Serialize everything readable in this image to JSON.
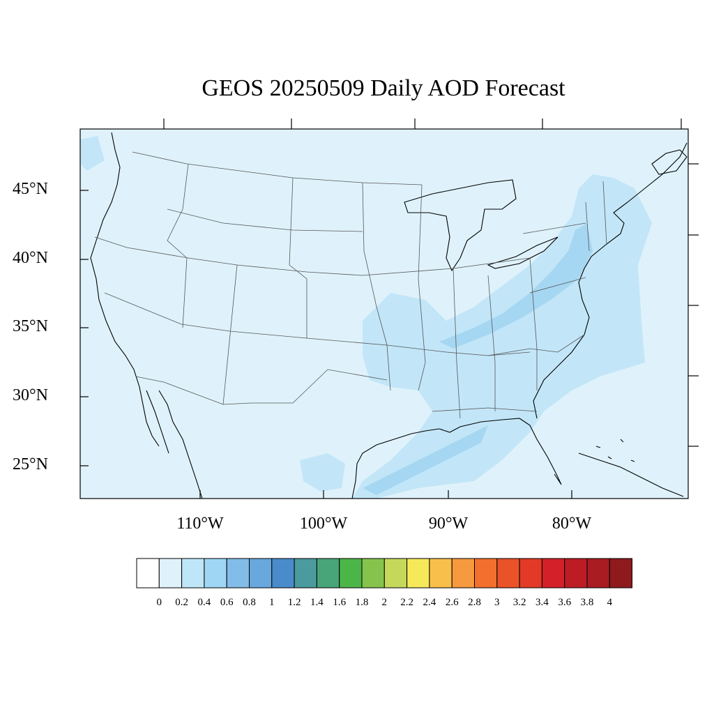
{
  "title": "GEOS 20250509 Daily AOD Forecast",
  "latitude_labels": [
    "45°N",
    "40°N",
    "35°N",
    "30°N",
    "25°N"
  ],
  "longitude_labels": [
    "110°W",
    "100°W",
    "90°W",
    "80°W"
  ],
  "colorbar": {
    "labels": [
      "0",
      "0.2",
      "0.4",
      "0.6",
      "0.8",
      "1",
      "1.2",
      "1.4",
      "1.6",
      "1.8",
      "2",
      "2.2",
      "2.4",
      "2.6",
      "2.8",
      "3",
      "3.2",
      "3.4",
      "3.6",
      "3.8",
      "4"
    ],
    "colors": [
      "#ffffff",
      "#dff2fb",
      "#bfe6f8",
      "#9fd6f4",
      "#82bce8",
      "#68a8dd",
      "#4a8ccb",
      "#4a9a9e",
      "#48a57a",
      "#4cb548",
      "#86c34c",
      "#c6d85a",
      "#f5e95a",
      "#f8c04a",
      "#f7993f",
      "#f26f2d",
      "#ea5228",
      "#e23a26",
      "#d42129",
      "#bd1c25",
      "#a91c22",
      "#8e1a1d"
    ]
  },
  "colors": {
    "ocean_land_base": "#dff2fb",
    "aod_0_4_0_6": "#bfe6f8",
    "aod_0_6_0_8": "#a7d9f3",
    "outline": "#000000"
  }
}
